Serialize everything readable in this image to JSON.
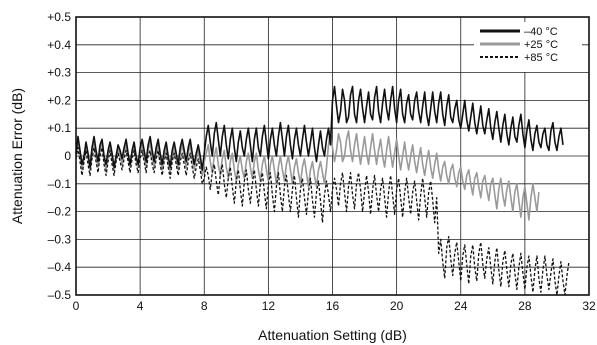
{
  "chart_data": {
    "type": "line",
    "title": "",
    "xlabel": "Attenuation Setting (dB)",
    "ylabel": "Attenuation Error (dB)",
    "xlim": [
      0,
      32
    ],
    "ylim": [
      -0.5,
      0.5
    ],
    "x_ticks": [
      0,
      4,
      8,
      12,
      16,
      20,
      24,
      28,
      32
    ],
    "x_tick_labels": [
      "0",
      "4",
      "8",
      "12",
      "16",
      "20",
      "24",
      "28",
      "32"
    ],
    "y_ticks": [
      0.5,
      0.4,
      0.3,
      0.2,
      0.1,
      0,
      -0.1,
      -0.2,
      -0.3,
      -0.4,
      -0.5
    ],
    "y_tick_labels": [
      "+0.5",
      "+0.4",
      "+0.3",
      "+0.2",
      "+0.1",
      "0",
      "–0.1",
      "–0.2",
      "–0.3",
      "–0.4",
      "–0.5"
    ],
    "grid": true,
    "legend_position": "top-right",
    "x_step": 0.125,
    "series": [
      {
        "name": "–40 °C",
        "color": "#111111",
        "style": "solid",
        "values": [
          0.01,
          0.07,
          0.02,
          -0.03,
          0.0,
          0.05,
          0.01,
          -0.04,
          0.03,
          0.07,
          0.02,
          -0.02,
          0.04,
          0.06,
          0.0,
          -0.03,
          0.02,
          0.05,
          0.01,
          -0.04,
          0.0,
          0.04,
          0.02,
          -0.01,
          0.03,
          0.06,
          0.01,
          -0.03,
          0.02,
          0.05,
          0.0,
          -0.03,
          0.03,
          0.06,
          0.02,
          -0.02,
          0.04,
          0.07,
          0.02,
          -0.02,
          0.03,
          0.06,
          0.01,
          -0.03,
          0.02,
          0.05,
          0.0,
          -0.04,
          0.02,
          0.05,
          0.01,
          -0.03,
          0.03,
          0.06,
          0.02,
          -0.02,
          0.03,
          0.06,
          0.01,
          -0.03,
          0.01,
          0.04,
          0.0,
          -0.05,
          0.01,
          0.07,
          0.11,
          0.05,
          0.0,
          0.08,
          0.12,
          0.06,
          0.0,
          0.07,
          0.11,
          0.04,
          -0.01,
          0.06,
          0.1,
          0.03,
          -0.02,
          0.05,
          0.09,
          0.03,
          0.0,
          0.06,
          0.1,
          0.04,
          -0.02,
          0.06,
          0.1,
          0.03,
          0.0,
          0.07,
          0.11,
          0.05,
          -0.01,
          0.06,
          0.1,
          0.04,
          0.0,
          0.07,
          0.12,
          0.06,
          0.0,
          0.07,
          0.11,
          0.04,
          -0.01,
          0.06,
          0.1,
          0.04,
          0.0,
          0.06,
          0.11,
          0.05,
          0.0,
          0.05,
          0.1,
          0.03,
          -0.02,
          0.04,
          0.09,
          0.03,
          0.0,
          0.06,
          0.1,
          0.04,
          0.2,
          0.25,
          0.18,
          0.12,
          0.16,
          0.24,
          0.2,
          0.12,
          0.14,
          0.22,
          0.25,
          0.15,
          0.12,
          0.2,
          0.24,
          0.17,
          0.12,
          0.18,
          0.23,
          0.15,
          0.13,
          0.21,
          0.25,
          0.16,
          0.12,
          0.19,
          0.24,
          0.17,
          0.13,
          0.2,
          0.25,
          0.17,
          0.12,
          0.2,
          0.24,
          0.15,
          0.12,
          0.19,
          0.22,
          0.15,
          0.13,
          0.2,
          0.23,
          0.16,
          0.12,
          0.18,
          0.23,
          0.15,
          0.11,
          0.17,
          0.23,
          0.16,
          0.12,
          0.19,
          0.23,
          0.15,
          0.11,
          0.18,
          0.22,
          0.14,
          0.12,
          0.17,
          0.2,
          0.13,
          0.1,
          0.15,
          0.2,
          0.13,
          0.09,
          0.14,
          0.19,
          0.12,
          0.08,
          0.13,
          0.18,
          0.11,
          0.08,
          0.13,
          0.17,
          0.1,
          0.06,
          0.12,
          0.16,
          0.1,
          0.05,
          0.11,
          0.15,
          0.08,
          0.04,
          0.1,
          0.14,
          0.07,
          0.05,
          0.11,
          0.15,
          0.08,
          0.03,
          0.09,
          0.13,
          0.06,
          0.02,
          0.08,
          0.11,
          0.05,
          0.03,
          0.08,
          0.1,
          0.04,
          0.02,
          0.09,
          0.12,
          0.05,
          0.02,
          0.07,
          0.1,
          0.04
        ]
      },
      {
        "name": "+25 °C",
        "color": "#9a9a9a",
        "style": "solid",
        "values": [
          0.0,
          0.05,
          0.01,
          -0.05,
          -0.01,
          0.04,
          0.0,
          -0.05,
          0.01,
          0.05,
          0.0,
          -0.04,
          0.02,
          0.05,
          -0.01,
          -0.05,
          0.0,
          0.04,
          -0.01,
          -0.05,
          -0.01,
          0.03,
          0.0,
          -0.03,
          0.01,
          0.04,
          0.0,
          -0.04,
          0.01,
          0.04,
          -0.01,
          -0.04,
          0.01,
          0.04,
          0.0,
          -0.04,
          0.02,
          0.05,
          0.0,
          -0.04,
          0.01,
          0.04,
          -0.01,
          -0.05,
          0.0,
          0.03,
          -0.02,
          -0.06,
          0.0,
          0.03,
          -0.01,
          -0.05,
          0.01,
          0.04,
          0.0,
          -0.04,
          0.01,
          0.04,
          -0.01,
          -0.05,
          -0.01,
          0.02,
          -0.02,
          -0.07,
          -0.02,
          0.01,
          0.04,
          -0.02,
          -0.06,
          0.0,
          0.03,
          -0.03,
          -0.07,
          -0.01,
          0.02,
          -0.04,
          -0.08,
          -0.02,
          0.01,
          -0.05,
          -0.09,
          -0.03,
          0.0,
          -0.05,
          -0.08,
          -0.02,
          0.01,
          -0.04,
          -0.08,
          -0.02,
          0.01,
          -0.05,
          -0.09,
          -0.03,
          0.0,
          -0.05,
          -0.09,
          -0.03,
          0.0,
          -0.05,
          -0.1,
          -0.04,
          0.0,
          -0.05,
          -0.09,
          -0.03,
          0.0,
          -0.05,
          -0.1,
          -0.04,
          -0.01,
          -0.06,
          -0.1,
          -0.04,
          -0.01,
          -0.06,
          -0.11,
          -0.05,
          -0.02,
          -0.07,
          -0.11,
          -0.05,
          -0.02,
          -0.06,
          -0.1,
          -0.04,
          0.04,
          0.09,
          0.03,
          -0.02,
          0.02,
          0.08,
          0.05,
          -0.02,
          0.0,
          0.06,
          0.09,
          0.02,
          -0.02,
          0.04,
          0.08,
          0.02,
          -0.03,
          0.02,
          0.07,
          0.01,
          -0.03,
          0.03,
          0.08,
          0.02,
          -0.03,
          0.02,
          0.06,
          0.0,
          -0.04,
          0.02,
          0.07,
          0.01,
          -0.04,
          0.01,
          0.06,
          0.0,
          -0.05,
          0.0,
          0.05,
          -0.01,
          -0.05,
          0.0,
          0.04,
          -0.02,
          -0.06,
          -0.01,
          0.03,
          -0.03,
          -0.07,
          -0.02,
          0.02,
          -0.04,
          -0.08,
          -0.03,
          0.01,
          -0.05,
          -0.09,
          -0.04,
          -0.02,
          -0.07,
          -0.1,
          -0.05,
          -0.03,
          -0.08,
          -0.11,
          -0.06,
          -0.04,
          -0.09,
          -0.12,
          -0.07,
          -0.05,
          -0.1,
          -0.14,
          -0.08,
          -0.06,
          -0.11,
          -0.15,
          -0.09,
          -0.07,
          -0.12,
          -0.16,
          -0.1,
          -0.08,
          -0.14,
          -0.19,
          -0.12,
          -0.08,
          -0.14,
          -0.18,
          -0.12,
          -0.09,
          -0.15,
          -0.2,
          -0.13,
          -0.1,
          -0.16,
          -0.22,
          -0.15,
          -0.11,
          -0.17,
          -0.23,
          -0.15,
          -0.1,
          -0.15,
          -0.2,
          -0.13
        ]
      },
      {
        "name": "+85 °C",
        "color": "#111111",
        "style": "dashed",
        "values": [
          -0.01,
          0.03,
          -0.02,
          -0.07,
          -0.02,
          0.02,
          -0.03,
          -0.07,
          -0.01,
          0.03,
          -0.02,
          -0.06,
          0.0,
          0.03,
          -0.03,
          -0.07,
          -0.02,
          0.02,
          -0.03,
          -0.07,
          -0.02,
          0.01,
          -0.02,
          -0.05,
          -0.01,
          0.02,
          -0.02,
          -0.06,
          -0.01,
          0.02,
          -0.03,
          -0.06,
          -0.01,
          0.02,
          -0.02,
          -0.06,
          0.0,
          0.02,
          -0.03,
          -0.06,
          -0.01,
          0.02,
          -0.03,
          -0.07,
          -0.02,
          0.01,
          -0.04,
          -0.08,
          -0.02,
          0.01,
          -0.03,
          -0.07,
          -0.02,
          0.01,
          -0.03,
          -0.07,
          -0.02,
          0.01,
          -0.04,
          -0.08,
          -0.04,
          -0.01,
          -0.05,
          -0.1,
          -0.08,
          -0.04,
          -0.07,
          -0.12,
          -0.06,
          -0.03,
          -0.09,
          -0.14,
          -0.07,
          -0.03,
          -0.1,
          -0.15,
          -0.08,
          -0.04,
          -0.11,
          -0.17,
          -0.09,
          -0.05,
          -0.12,
          -0.18,
          -0.09,
          -0.05,
          -0.12,
          -0.17,
          -0.1,
          -0.05,
          -0.12,
          -0.18,
          -0.1,
          -0.06,
          -0.13,
          -0.19,
          -0.1,
          -0.06,
          -0.14,
          -0.2,
          -0.11,
          -0.06,
          -0.14,
          -0.2,
          -0.11,
          -0.07,
          -0.14,
          -0.2,
          -0.12,
          -0.07,
          -0.15,
          -0.22,
          -0.12,
          -0.08,
          -0.15,
          -0.21,
          -0.13,
          -0.08,
          -0.16,
          -0.22,
          -0.13,
          -0.09,
          -0.16,
          -0.24,
          -0.14,
          -0.09,
          -0.14,
          -0.2,
          -0.12,
          -0.08,
          -0.12,
          -0.18,
          -0.1,
          -0.06,
          -0.13,
          -0.2,
          -0.11,
          -0.06,
          -0.14,
          -0.19,
          -0.1,
          -0.06,
          -0.12,
          -0.2,
          -0.13,
          -0.07,
          -0.13,
          -0.21,
          -0.12,
          -0.07,
          -0.14,
          -0.2,
          -0.12,
          -0.08,
          -0.15,
          -0.22,
          -0.13,
          -0.07,
          -0.14,
          -0.21,
          -0.12,
          -0.08,
          -0.15,
          -0.22,
          -0.13,
          -0.08,
          -0.15,
          -0.21,
          -0.13,
          -0.09,
          -0.16,
          -0.23,
          -0.14,
          -0.08,
          -0.15,
          -0.22,
          -0.13,
          -0.09,
          -0.16,
          -0.24,
          -0.15,
          -0.35,
          -0.3,
          -0.38,
          -0.44,
          -0.33,
          -0.29,
          -0.37,
          -0.43,
          -0.35,
          -0.31,
          -0.38,
          -0.45,
          -0.36,
          -0.32,
          -0.39,
          -0.46,
          -0.36,
          -0.32,
          -0.4,
          -0.45,
          -0.35,
          -0.31,
          -0.39,
          -0.44,
          -0.37,
          -0.33,
          -0.4,
          -0.46,
          -0.38,
          -0.33,
          -0.41,
          -0.47,
          -0.38,
          -0.34,
          -0.41,
          -0.47,
          -0.39,
          -0.35,
          -0.42,
          -0.48,
          -0.4,
          -0.35,
          -0.42,
          -0.48,
          -0.4,
          -0.36,
          -0.43,
          -0.49,
          -0.41,
          -0.36,
          -0.44,
          -0.49,
          -0.41,
          -0.36,
          -0.43,
          -0.48,
          -0.42,
          -0.37,
          -0.45,
          -0.5,
          -0.43,
          -0.38,
          -0.45,
          -0.5,
          -0.43,
          -0.38
        ]
      }
    ]
  }
}
